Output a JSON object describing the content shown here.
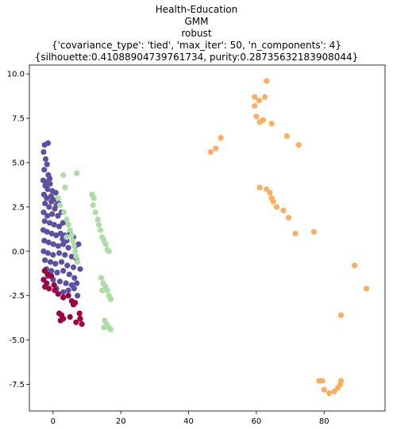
{
  "chart_data": {
    "type": "scatter",
    "title_lines": [
      "Health-Education",
      "GMM",
      "robust",
      "{'covariance_type': 'tied', 'max_iter': 50, 'n_components': 4}",
      "{silhouette:0.41088904739761734, purity:0.28735632183908044}"
    ],
    "xlabel": "",
    "ylabel": "",
    "xlim": [
      -7,
      98
    ],
    "ylim": [
      -9.0,
      10.5
    ],
    "xticks": [
      0,
      20,
      40,
      60,
      80
    ],
    "yticks": [
      -7.5,
      -5.0,
      -2.5,
      0.0,
      2.5,
      5.0,
      7.5,
      10.0
    ],
    "grid": false,
    "legend": "none",
    "series": [
      {
        "color": "#5e4fa2",
        "points": [
          [
            -2.5,
            6.0
          ],
          [
            -1.5,
            6.1
          ],
          [
            -2.8,
            5.6
          ],
          [
            -2.2,
            5.2
          ],
          [
            -1.8,
            4.9
          ],
          [
            -2.6,
            4.6
          ],
          [
            -1.4,
            4.3
          ],
          [
            -2.9,
            4.0
          ],
          [
            -2.3,
            3.7
          ],
          [
            -1.6,
            3.5
          ],
          [
            -0.9,
            3.8
          ],
          [
            -2.7,
            3.2
          ],
          [
            -1.9,
            3.0
          ],
          [
            -0.6,
            3.1
          ],
          [
            0.2,
            2.9
          ],
          [
            -2.4,
            2.7
          ],
          [
            -1.2,
            2.5
          ],
          [
            0.5,
            2.4
          ],
          [
            1.0,
            2.6
          ],
          [
            -2.8,
            2.2
          ],
          [
            -1.7,
            2.0
          ],
          [
            -0.3,
            2.1
          ],
          [
            1.4,
            2.0
          ],
          [
            2.5,
            2.2
          ],
          [
            -2.5,
            1.7
          ],
          [
            -1.0,
            1.6
          ],
          [
            0.3,
            1.5
          ],
          [
            1.8,
            1.4
          ],
          [
            2.9,
            1.6
          ],
          [
            -2.9,
            1.2
          ],
          [
            -1.8,
            1.1
          ],
          [
            -0.4,
            1.0
          ],
          [
            0.9,
            0.9
          ],
          [
            2.2,
            1.0
          ],
          [
            3.5,
            0.9
          ],
          [
            5.0,
            1.0
          ],
          [
            6.0,
            0.8
          ],
          [
            -2.6,
            0.6
          ],
          [
            -1.3,
            0.5
          ],
          [
            0.1,
            0.4
          ],
          [
            1.5,
            0.3
          ],
          [
            3.0,
            0.4
          ],
          [
            4.5,
            0.2
          ],
          [
            6.5,
            0.3
          ],
          [
            7.5,
            0.4
          ],
          [
            -2.8,
            0.0
          ],
          [
            -1.5,
            -0.1
          ],
          [
            0.0,
            -0.2
          ],
          [
            1.8,
            -0.1
          ],
          [
            3.5,
            -0.2
          ],
          [
            5.5,
            -0.3
          ],
          [
            6.8,
            -0.4
          ],
          [
            -2.4,
            -0.5
          ],
          [
            -0.8,
            -0.6
          ],
          [
            0.7,
            -0.7
          ],
          [
            2.5,
            -0.6
          ],
          [
            4.2,
            -0.8
          ],
          [
            6.0,
            -0.9
          ],
          [
            -2.0,
            -1.0
          ],
          [
            -0.5,
            -1.1
          ],
          [
            1.2,
            -1.2
          ],
          [
            3.0,
            -1.1
          ],
          [
            4.8,
            -1.3
          ],
          [
            6.3,
            -1.5
          ],
          [
            -1.5,
            -1.4
          ],
          [
            0.0,
            -1.6
          ],
          [
            2.0,
            -1.7
          ],
          [
            3.8,
            -1.8
          ],
          [
            5.5,
            -1.9
          ],
          [
            7.0,
            -1.8
          ],
          [
            1.0,
            -2.1
          ],
          [
            3.0,
            -2.3
          ],
          [
            4.5,
            -2.2
          ],
          [
            6.2,
            -2.1
          ],
          [
            -0.2,
            3.4
          ],
          [
            0.8,
            3.3
          ],
          [
            -2.2,
            3.9
          ],
          [
            -1.0,
            4.1
          ],
          [
            -0.5,
            2.8
          ],
          [
            1.6,
            2.7
          ],
          [
            2.8,
            0.7
          ],
          [
            4.0,
            0.6
          ],
          [
            8.0,
            -1.0
          ],
          [
            7.2,
            -2.5
          ]
        ]
      },
      {
        "color": "#9e0142",
        "points": [
          [
            -2.5,
            -1.1
          ],
          [
            -1.6,
            -1.3
          ],
          [
            -2.8,
            -1.6
          ],
          [
            -1.9,
            -1.8
          ],
          [
            -2.4,
            -2.0
          ],
          [
            -1.2,
            -2.1
          ],
          [
            -0.5,
            -1.4
          ],
          [
            0.3,
            -1.9
          ],
          [
            1.5,
            -2.4
          ],
          [
            3.0,
            -2.6
          ],
          [
            4.5,
            -2.5
          ],
          [
            5.5,
            -2.8
          ],
          [
            6.0,
            -3.0
          ],
          [
            6.5,
            -2.9
          ],
          [
            1.8,
            -3.5
          ],
          [
            2.5,
            -3.6
          ],
          [
            3.0,
            -3.8
          ],
          [
            2.2,
            -3.9
          ],
          [
            5.0,
            -3.7
          ],
          [
            7.8,
            -3.5
          ],
          [
            8.0,
            -3.8
          ],
          [
            6.8,
            -4.0
          ],
          [
            8.5,
            -4.1
          ],
          [
            0.5,
            -2.2
          ]
        ]
      },
      {
        "color": "#abdda4",
        "points": [
          [
            3.0,
            4.3
          ],
          [
            7.0,
            4.4
          ],
          [
            3.5,
            3.6
          ],
          [
            1.5,
            3.0
          ],
          [
            2.0,
            2.6
          ],
          [
            3.2,
            2.2
          ],
          [
            4.0,
            1.8
          ],
          [
            4.5,
            1.5
          ],
          [
            5.0,
            1.2
          ],
          [
            5.5,
            0.9
          ],
          [
            5.8,
            0.6
          ],
          [
            6.2,
            0.3
          ],
          [
            6.5,
            0.0
          ],
          [
            6.8,
            -0.3
          ],
          [
            7.2,
            -0.6
          ],
          [
            4.0,
            0.8
          ],
          [
            11.5,
            3.2
          ],
          [
            12.0,
            3.0
          ],
          [
            11.8,
            2.6
          ],
          [
            12.5,
            2.2
          ],
          [
            13.2,
            1.8
          ],
          [
            13.5,
            1.5
          ],
          [
            14.0,
            1.2
          ],
          [
            14.5,
            0.8
          ],
          [
            15.0,
            0.6
          ],
          [
            15.5,
            0.4
          ],
          [
            16.0,
            0.1
          ],
          [
            16.5,
            0.0
          ],
          [
            14.2,
            -1.5
          ],
          [
            14.8,
            -1.8
          ],
          [
            15.5,
            -2.0
          ],
          [
            16.0,
            -2.2
          ],
          [
            16.5,
            -2.5
          ],
          [
            17.0,
            -2.7
          ],
          [
            14.5,
            -2.2
          ],
          [
            15.2,
            -3.9
          ],
          [
            15.8,
            -4.1
          ],
          [
            16.5,
            -4.3
          ],
          [
            17.0,
            -4.4
          ],
          [
            15.0,
            -4.3
          ]
        ]
      },
      {
        "color": "#fdae61",
        "points": [
          [
            63.0,
            9.6
          ],
          [
            59.5,
            8.7
          ],
          [
            60.8,
            8.5
          ],
          [
            62.5,
            8.7
          ],
          [
            59.5,
            8.2
          ],
          [
            60.0,
            7.6
          ],
          [
            61.0,
            7.3
          ],
          [
            62.0,
            7.4
          ],
          [
            64.5,
            7.2
          ],
          [
            69.0,
            6.5
          ],
          [
            72.5,
            6.0
          ],
          [
            49.5,
            6.4
          ],
          [
            48.0,
            5.8
          ],
          [
            46.5,
            5.6
          ],
          [
            61.0,
            3.6
          ],
          [
            63.0,
            3.5
          ],
          [
            64.0,
            3.3
          ],
          [
            64.5,
            3.0
          ],
          [
            65.0,
            2.8
          ],
          [
            66.0,
            2.5
          ],
          [
            68.0,
            2.3
          ],
          [
            69.5,
            1.9
          ],
          [
            71.5,
            1.0
          ],
          [
            77.0,
            1.1
          ],
          [
            89.0,
            -0.8
          ],
          [
            92.5,
            -2.1
          ],
          [
            85.0,
            -3.6
          ],
          [
            78.5,
            -7.3
          ],
          [
            80.0,
            -7.8
          ],
          [
            81.5,
            -8.0
          ],
          [
            83.0,
            -7.9
          ],
          [
            84.0,
            -7.7
          ],
          [
            84.8,
            -7.5
          ],
          [
            85.0,
            -7.3
          ],
          [
            79.5,
            -7.3
          ]
        ]
      }
    ]
  }
}
